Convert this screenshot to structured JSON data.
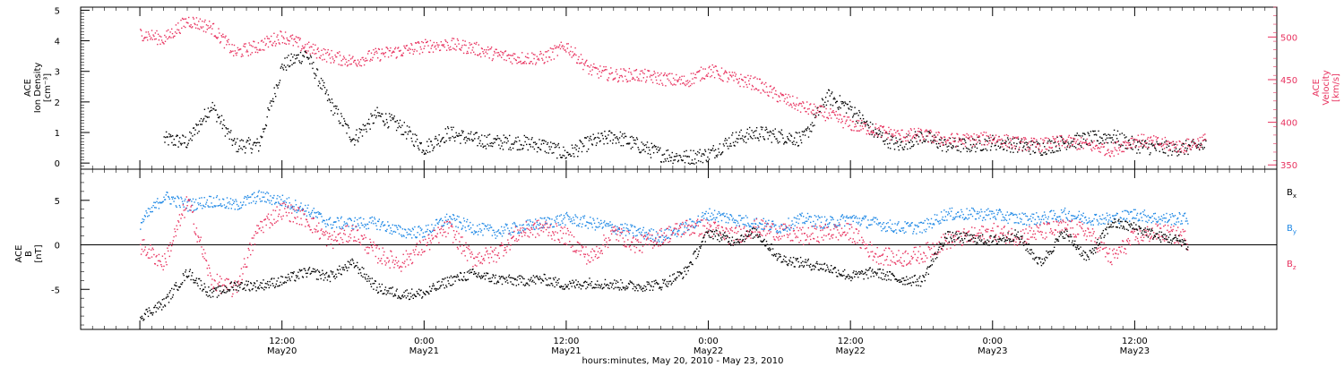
{
  "chart_data": [
    {
      "type": "scatter",
      "panel": "top",
      "title": "",
      "ylabel_left": [
        "ACE",
        "Ion Density",
        "[cm⁻³]"
      ],
      "ylabel_right": [
        "ACE",
        "Velocity",
        "[km/s]"
      ],
      "ylim_left": [
        -0.2,
        5.1
      ],
      "yticks_left": [
        "0",
        "1",
        "2",
        "3",
        "4",
        "5"
      ],
      "ylim_right": [
        345,
        535
      ],
      "yticks_right": [
        "350",
        "400",
        "450",
        "500"
      ],
      "series": [
        {
          "axis": "left",
          "color": "#000000",
          "points_hours": [
            2,
            4,
            6,
            8,
            10,
            12,
            14,
            16,
            18,
            20,
            22,
            24,
            26,
            28,
            30,
            32,
            34,
            36,
            38,
            40,
            42,
            44,
            46,
            48,
            50,
            52,
            54,
            56,
            58,
            60,
            62,
            64,
            66,
            68,
            70,
            72,
            74,
            76,
            78,
            80,
            82,
            84,
            86,
            88,
            90
          ],
          "values": [
            0.8,
            0.7,
            1.9,
            0.6,
            0.6,
            3.2,
            3.6,
            2.0,
            0.8,
            1.6,
            1.2,
            0.5,
            1.0,
            0.8,
            0.7,
            0.7,
            0.6,
            0.3,
            0.7,
            0.9,
            0.6,
            0.3,
            0.2,
            0.3,
            0.8,
            1.0,
            0.9,
            0.8,
            2.2,
            1.8,
            1.0,
            0.6,
            0.9,
            0.6,
            0.6,
            0.7,
            0.6,
            0.5,
            0.7,
            0.8,
            0.9,
            0.6,
            0.5,
            0.5,
            0.6
          ]
        },
        {
          "axis": "right",
          "color": "#e8325f",
          "points_hours": [
            0,
            2,
            4,
            6,
            8,
            10,
            12,
            14,
            16,
            18,
            20,
            22,
            24,
            26,
            28,
            30,
            32,
            34,
            36,
            38,
            40,
            42,
            44,
            46,
            48,
            50,
            52,
            54,
            56,
            58,
            60,
            62,
            64,
            66,
            68,
            70,
            72,
            74,
            76,
            78,
            80,
            82,
            84,
            86,
            88,
            90
          ],
          "values": [
            505,
            498,
            520,
            512,
            482,
            490,
            502,
            488,
            478,
            472,
            480,
            484,
            490,
            492,
            488,
            480,
            476,
            476,
            490,
            462,
            456,
            456,
            452,
            448,
            462,
            452,
            446,
            430,
            418,
            410,
            398,
            392,
            385,
            386,
            380,
            380,
            382,
            376,
            374,
            378,
            374,
            368,
            380,
            376,
            372,
            380
          ]
        }
      ]
    },
    {
      "type": "scatter",
      "panel": "bottom",
      "title": "",
      "ylabel": [
        "ACE",
        "B",
        "[nT]"
      ],
      "ylim": [
        -9.5,
        8.5
      ],
      "yticks": [
        "-5",
        "0",
        "5"
      ],
      "zero_line": true,
      "series": [
        {
          "name": "Bx",
          "label_main": "B",
          "label_sub": "x",
          "color": "#000000",
          "points_hours": [
            0,
            2,
            4,
            6,
            8,
            10,
            12,
            14,
            16,
            18,
            20,
            22,
            24,
            26,
            28,
            30,
            32,
            34,
            36,
            38,
            40,
            42,
            44,
            46,
            48,
            50,
            52,
            54,
            56,
            58,
            60,
            62,
            64,
            66,
            68,
            70,
            72,
            74,
            76,
            78,
            80,
            82,
            84,
            86,
            88,
            90
          ],
          "values": [
            -8.0,
            -6.5,
            -3.0,
            -5.5,
            -4.5,
            -4.5,
            -4.0,
            -3.0,
            -3.5,
            -2.0,
            -4.8,
            -5.5,
            -5.4,
            -4.0,
            -3.2,
            -3.8,
            -4.0,
            -3.8,
            -4.5,
            -4.2,
            -4.4,
            -4.6,
            -4.4,
            -3.0,
            1.5,
            0.5,
            1.5,
            -1.5,
            -2.0,
            -2.5,
            -3.5,
            -3.0,
            -3.8,
            -4.0,
            1.0,
            0.8,
            0.5,
            1.2,
            -2.0,
            1.5,
            -1.5,
            2.5,
            2.0,
            1.0,
            0.5,
            -2.5
          ]
        },
        {
          "name": "By",
          "label_main": "B",
          "label_sub": "y",
          "color": "#1e88e5",
          "points_hours": [
            0,
            2,
            4,
            6,
            8,
            10,
            12,
            14,
            16,
            18,
            20,
            22,
            24,
            26,
            28,
            30,
            32,
            34,
            36,
            38,
            40,
            42,
            44,
            46,
            48,
            50,
            52,
            54,
            56,
            58,
            60,
            62,
            64,
            66,
            68,
            70,
            72,
            74,
            76,
            78,
            80,
            82,
            84,
            86,
            88,
            90
          ],
          "values": [
            2.5,
            5.5,
            4.5,
            5.0,
            4.5,
            5.5,
            5.0,
            4.0,
            2.5,
            2.5,
            2.5,
            1.5,
            1.5,
            3.0,
            2.0,
            1.5,
            2.0,
            2.5,
            3.0,
            2.5,
            2.0,
            1.5,
            1.0,
            2.0,
            3.5,
            3.0,
            2.5,
            2.0,
            3.0,
            2.5,
            3.0,
            2.5,
            2.0,
            2.0,
            3.5,
            3.5,
            3.5,
            3.0,
            3.0,
            3.5,
            3.0,
            3.0,
            3.5,
            3.0,
            3.0,
            3.0
          ]
        },
        {
          "name": "Bz",
          "label_main": "B",
          "label_sub": "z",
          "color": "#e8325f",
          "points_hours": [
            0,
            2,
            4,
            6,
            8,
            10,
            12,
            14,
            16,
            18,
            20,
            22,
            24,
            26,
            28,
            30,
            32,
            34,
            36,
            38,
            40,
            42,
            44,
            46,
            48,
            50,
            52,
            54,
            56,
            58,
            60,
            62,
            64,
            66,
            68,
            70,
            72,
            74,
            76,
            78,
            80,
            82,
            84,
            86,
            88,
            90
          ],
          "values": [
            0.0,
            -2.0,
            5.0,
            -4.0,
            -5.0,
            2.0,
            4.0,
            3.0,
            0.5,
            1.5,
            -1.0,
            -2.0,
            0.0,
            2.0,
            -1.5,
            -1.0,
            1.5,
            2.0,
            1.0,
            -1.5,
            1.5,
            0.0,
            1.0,
            2.0,
            2.0,
            1.0,
            2.0,
            1.5,
            1.0,
            1.5,
            1.5,
            -1.0,
            -1.5,
            -1.0,
            0.5,
            1.0,
            1.5,
            1.0,
            1.5,
            2.0,
            1.5,
            -1.5,
            1.0,
            1.5,
            1.0,
            -1.5
          ]
        }
      ]
    }
  ],
  "x_axis": {
    "range_hours": [
      -5,
      96
    ],
    "ticks": [
      {
        "hour": 12,
        "time": "12:00",
        "date": "May20"
      },
      {
        "hour": 24,
        "time": "0:00",
        "date": "May21"
      },
      {
        "hour": 36,
        "time": "12:00",
        "date": "May21"
      },
      {
        "hour": 48,
        "time": "0:00",
        "date": "May22"
      },
      {
        "hour": 60,
        "time": "12:00",
        "date": "May22"
      },
      {
        "hour": 72,
        "time": "0:00",
        "date": "May23"
      },
      {
        "hour": 84,
        "time": "12:00",
        "date": "May23"
      }
    ],
    "label": "hours:minutes, May 20, 2010 - May 23, 2010"
  }
}
